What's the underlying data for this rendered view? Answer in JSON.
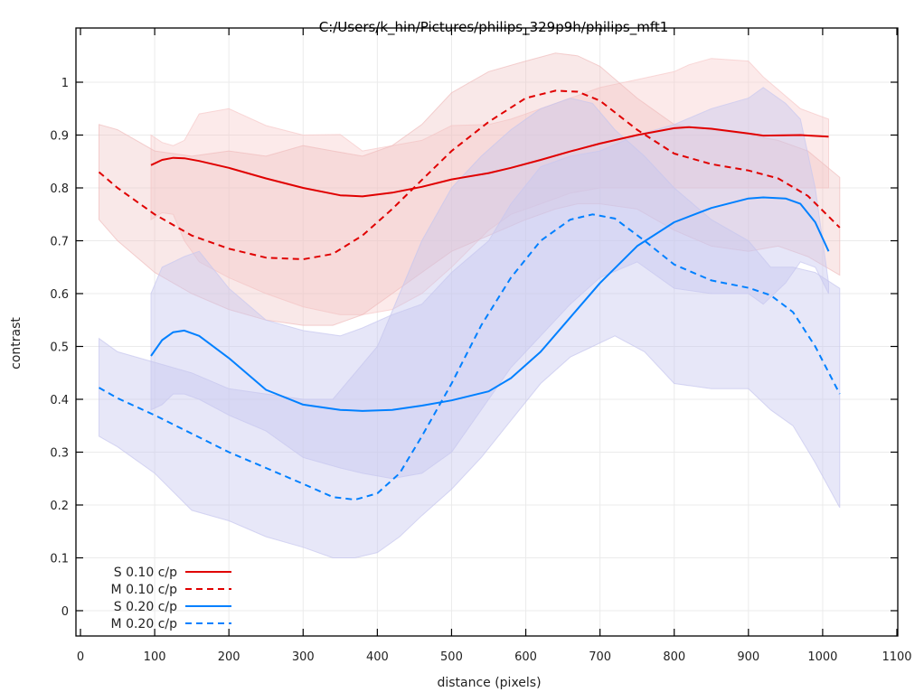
{
  "chart_data": {
    "type": "line",
    "title": "C:/Users/k_hin/Pictures/philips_329p9h/philips_mft1",
    "xlabel": "distance (pixels)",
    "ylabel": "contrast",
    "xlim": [
      0,
      1100
    ],
    "ylim": [
      -0.05,
      1.05
    ],
    "xticks": [
      0,
      100,
      200,
      300,
      400,
      500,
      600,
      700,
      800,
      900,
      1000,
      1100
    ],
    "yticks": [
      0,
      0.1,
      0.2,
      0.3,
      0.4,
      0.5,
      0.6,
      0.7,
      0.8,
      0.9,
      1
    ],
    "grid": true,
    "legend_position": "bottom-left",
    "series": [
      {
        "name": "S 0.10 c/p",
        "color": "#e00000",
        "style": "solid",
        "x": [
          95,
          110,
          125,
          140,
          160,
          200,
          250,
          300,
          350,
          380,
          420,
          460,
          500,
          550,
          580,
          620,
          660,
          700,
          750,
          800,
          820,
          850,
          900,
          920,
          970,
          1008
        ],
        "y": [
          0.843,
          0.853,
          0.857,
          0.856,
          0.851,
          0.838,
          0.818,
          0.8,
          0.786,
          0.784,
          0.791,
          0.802,
          0.816,
          0.828,
          0.838,
          0.853,
          0.869,
          0.884,
          0.9,
          0.913,
          0.915,
          0.912,
          0.903,
          0.899,
          0.9,
          0.897
        ],
        "band_upper": [
          0.9,
          0.886,
          0.88,
          0.89,
          0.94,
          0.95,
          0.918,
          0.9,
          0.901,
          0.87,
          0.88,
          0.89,
          0.918,
          0.92,
          0.93,
          0.95,
          0.97,
          0.99,
          1.005,
          1.02,
          1.033,
          1.045,
          1.04,
          1.01,
          0.95,
          0.93
        ],
        "band_lower": [
          0.74,
          0.753,
          0.75,
          0.7,
          0.66,
          0.63,
          0.6,
          0.575,
          0.56,
          0.56,
          0.57,
          0.6,
          0.65,
          0.72,
          0.75,
          0.77,
          0.79,
          0.8,
          0.8,
          0.8,
          0.8,
          0.8,
          0.8,
          0.8,
          0.8,
          0.8
        ]
      },
      {
        "name": "M 0.10 c/p",
        "color": "#e00000",
        "style": "dashed",
        "x": [
          25,
          50,
          100,
          150,
          200,
          250,
          300,
          340,
          380,
          420,
          460,
          500,
          550,
          600,
          640,
          670,
          700,
          750,
          800,
          850,
          900,
          940,
          980,
          1023
        ],
        "y": [
          0.83,
          0.8,
          0.75,
          0.71,
          0.685,
          0.668,
          0.665,
          0.675,
          0.71,
          0.76,
          0.815,
          0.87,
          0.925,
          0.97,
          0.984,
          0.982,
          0.965,
          0.91,
          0.865,
          0.845,
          0.833,
          0.818,
          0.785,
          0.725
        ],
        "band_upper": [
          0.92,
          0.91,
          0.87,
          0.86,
          0.87,
          0.86,
          0.88,
          0.87,
          0.86,
          0.88,
          0.92,
          0.98,
          1.02,
          1.04,
          1.055,
          1.05,
          1.03,
          0.97,
          0.92,
          0.91,
          0.9,
          0.89,
          0.87,
          0.82
        ],
        "band_lower": [
          0.74,
          0.7,
          0.64,
          0.6,
          0.57,
          0.55,
          0.54,
          0.54,
          0.56,
          0.6,
          0.64,
          0.68,
          0.71,
          0.74,
          0.76,
          0.77,
          0.77,
          0.76,
          0.72,
          0.69,
          0.68,
          0.69,
          0.67,
          0.635
        ]
      },
      {
        "name": "S 0.20 c/p",
        "color": "#0080ff",
        "style": "solid",
        "x": [
          95,
          110,
          125,
          140,
          160,
          200,
          250,
          300,
          350,
          380,
          420,
          460,
          500,
          550,
          580,
          620,
          660,
          700,
          750,
          800,
          850,
          900,
          920,
          950,
          970,
          990,
          1008
        ],
        "y": [
          0.482,
          0.512,
          0.527,
          0.53,
          0.52,
          0.478,
          0.418,
          0.39,
          0.38,
          0.378,
          0.38,
          0.388,
          0.398,
          0.415,
          0.44,
          0.49,
          0.555,
          0.62,
          0.69,
          0.735,
          0.762,
          0.78,
          0.782,
          0.78,
          0.77,
          0.735,
          0.68
        ],
        "band_upper": [
          0.6,
          0.65,
          0.66,
          0.67,
          0.68,
          0.61,
          0.55,
          0.53,
          0.52,
          0.535,
          0.56,
          0.58,
          0.64,
          0.7,
          0.77,
          0.84,
          0.86,
          0.87,
          0.9,
          0.92,
          0.95,
          0.97,
          0.99,
          0.96,
          0.93,
          0.8,
          0.62
        ],
        "band_lower": [
          0.38,
          0.39,
          0.41,
          0.41,
          0.4,
          0.37,
          0.34,
          0.29,
          0.27,
          0.26,
          0.25,
          0.26,
          0.3,
          0.4,
          0.46,
          0.52,
          0.58,
          0.63,
          0.66,
          0.61,
          0.6,
          0.6,
          0.58,
          0.62,
          0.66,
          0.65,
          0.6
        ]
      },
      {
        "name": "M 0.20 c/p",
        "color": "#0080ff",
        "style": "dashed",
        "x": [
          25,
          50,
          100,
          150,
          200,
          250,
          300,
          340,
          370,
          400,
          430,
          460,
          500,
          540,
          580,
          620,
          660,
          690,
          720,
          760,
          800,
          850,
          900,
          930,
          960,
          990,
          1023
        ],
        "y": [
          0.422,
          0.402,
          0.37,
          0.335,
          0.3,
          0.27,
          0.24,
          0.215,
          0.21,
          0.222,
          0.26,
          0.33,
          0.43,
          0.54,
          0.63,
          0.7,
          0.74,
          0.75,
          0.742,
          0.7,
          0.655,
          0.625,
          0.611,
          0.597,
          0.565,
          0.5,
          0.41
        ],
        "band_upper": [
          0.515,
          0.49,
          0.47,
          0.45,
          0.42,
          0.41,
          0.4,
          0.4,
          0.45,
          0.5,
          0.6,
          0.7,
          0.8,
          0.86,
          0.91,
          0.95,
          0.97,
          0.96,
          0.91,
          0.86,
          0.8,
          0.74,
          0.7,
          0.65,
          0.65,
          0.64,
          0.61
        ],
        "band_lower": [
          0.33,
          0.31,
          0.26,
          0.19,
          0.17,
          0.14,
          0.12,
          0.1,
          0.1,
          0.11,
          0.14,
          0.18,
          0.23,
          0.29,
          0.36,
          0.43,
          0.48,
          0.5,
          0.52,
          0.49,
          0.43,
          0.42,
          0.42,
          0.38,
          0.35,
          0.28,
          0.195
        ]
      }
    ]
  }
}
